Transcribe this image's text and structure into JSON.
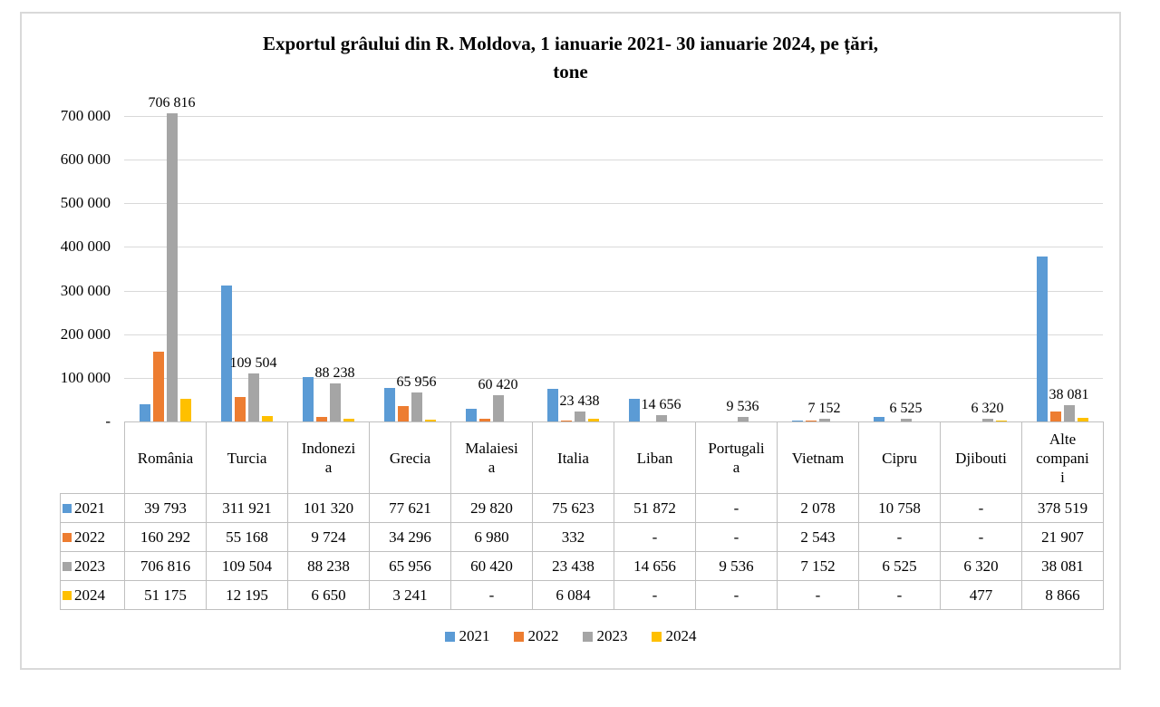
{
  "title": "Exportul grâului din R. Moldova, 1 ianuarie 2021- 30 ianuarie 2024, pe țări,\ntone",
  "chart_data": {
    "type": "bar",
    "title": "Exportul grâului din R. Moldova, 1 ianuarie 2021- 30 ianuarie 2024, pe țări, tone",
    "xlabel": "",
    "ylabel": "",
    "unit": "tone",
    "grid": true,
    "legend_position": "bottom",
    "ylim": [
      0,
      700000
    ],
    "y_ticks": [
      "700 000",
      "600 000",
      "500 000",
      "400 000",
      "300 000",
      "200 000",
      "100 000",
      "-"
    ],
    "categories": [
      "România",
      "Turcia",
      "Indonezia",
      "Grecia",
      "Malaiesia",
      "Italia",
      "Liban",
      "Portugalia",
      "Vietnam",
      "Cipru",
      "Djibouti",
      "Alte companii"
    ],
    "series": [
      {
        "name": "2021",
        "color": "#5B9BD5",
        "values": [
          39793,
          311921,
          101320,
          77621,
          29820,
          75623,
          51872,
          null,
          2078,
          10758,
          null,
          378519
        ]
      },
      {
        "name": "2022",
        "color": "#ED7D31",
        "values": [
          160292,
          55168,
          9724,
          34296,
          6980,
          332,
          null,
          null,
          2543,
          null,
          null,
          21907
        ]
      },
      {
        "name": "2023",
        "color": "#A5A5A5",
        "values": [
          706816,
          109504,
          88238,
          65956,
          60420,
          23438,
          14656,
          9536,
          7152,
          6525,
          6320,
          38081
        ],
        "data_labels": [
          "706 816",
          "109 504",
          "88 238",
          "65 956",
          "60 420",
          "23 438",
          "14 656",
          "9 536",
          "7 152",
          "6 525",
          "6 320",
          "38 081"
        ]
      },
      {
        "name": "2024",
        "color": "#FFC000",
        "values": [
          51175,
          12195,
          6650,
          3241,
          null,
          6084,
          null,
          null,
          null,
          null,
          477,
          8866
        ]
      }
    ]
  },
  "table": {
    "col_headers": [
      "România",
      "Turcia",
      "Indonezi\na",
      "Grecia",
      "Malaiesi\na",
      "Italia",
      "Liban",
      "Portugali\na",
      "Vietnam",
      "Cipru",
      "Djibouti",
      "Alte\ncompani\ni"
    ],
    "rows": [
      {
        "label": "2021",
        "color": "#5B9BD5",
        "cells": [
          "39 793",
          "311 921",
          "101 320",
          "77 621",
          "29 820",
          "75 623",
          "51 872",
          "-",
          "2 078",
          "10 758",
          "-",
          "378 519"
        ]
      },
      {
        "label": "2022",
        "color": "#ED7D31",
        "cells": [
          "160 292",
          "55 168",
          "9 724",
          "34 296",
          "6 980",
          "332",
          "-",
          "-",
          "2 543",
          "-",
          "-",
          "21 907"
        ]
      },
      {
        "label": "2023",
        "color": "#A5A5A5",
        "cells": [
          "706 816",
          "109 504",
          "88 238",
          "65 956",
          "60 420",
          "23 438",
          "14 656",
          "9 536",
          "7 152",
          "6 525",
          "6 320",
          "38 081"
        ]
      },
      {
        "label": "2024",
        "color": "#FFC000",
        "cells": [
          "51 175",
          "12 195",
          "6 650",
          "3 241",
          "-",
          "6 084",
          "-",
          "-",
          "-",
          "-",
          "477",
          "8 866"
        ]
      }
    ]
  },
  "legend": {
    "items": [
      {
        "label": "2021",
        "color": "#5B9BD5"
      },
      {
        "label": "2022",
        "color": "#ED7D31"
      },
      {
        "label": "2023",
        "color": "#A5A5A5"
      },
      {
        "label": "2024",
        "color": "#FFC000"
      }
    ]
  }
}
